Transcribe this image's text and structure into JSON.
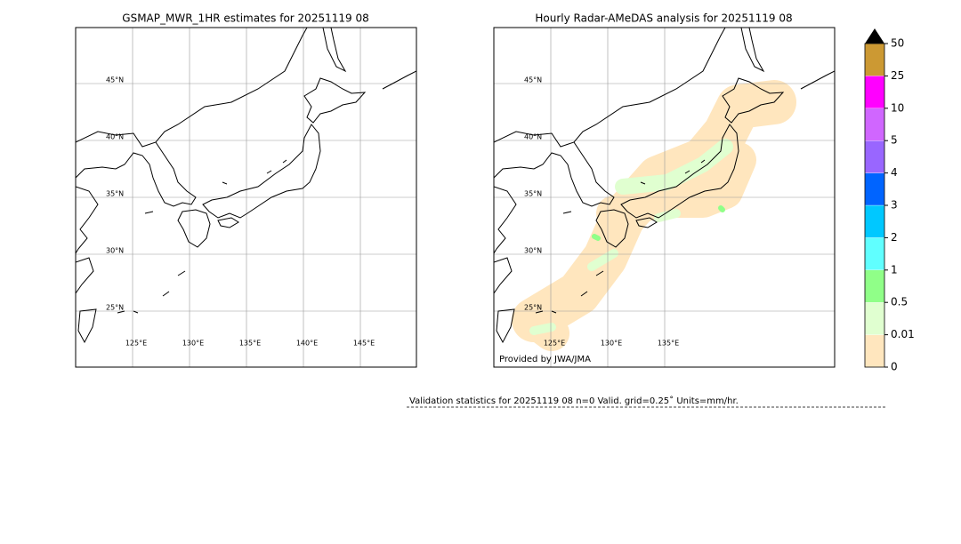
{
  "left_panel": {
    "title": "GSMAP_MWR_1HR estimates for 20251119 08",
    "lat_labels": [
      "45°N",
      "40°N",
      "35°N",
      "30°N",
      "25°N"
    ],
    "lon_labels": [
      "125°E",
      "130°E",
      "135°E",
      "140°E",
      "145°E"
    ]
  },
  "right_panel": {
    "title": "Hourly Radar-AMeDAS analysis for 20251119 08",
    "lat_labels": [
      "45°N",
      "40°N",
      "35°N",
      "30°N",
      "25°N"
    ],
    "lon_labels": [
      "125°E",
      "130°E",
      "135°E"
    ],
    "credit": "Provided by JWA/JMA"
  },
  "colorbar": {
    "labels": [
      "0",
      "0.01",
      "0.5",
      "1",
      "2",
      "3",
      "4",
      "5",
      "10",
      "25",
      "50"
    ],
    "colors": [
      "#ffe6be",
      "#e0ffd0",
      "#90ff88",
      "#60ffff",
      "#00c8ff",
      "#0064ff",
      "#9966ff",
      "#d066ff",
      "#ff00ff",
      "#cc9933"
    ]
  },
  "footer": "Validation statistics for 20251119 08  n=0 Valid. grid=0.25˚ Units=mm/hr."
}
